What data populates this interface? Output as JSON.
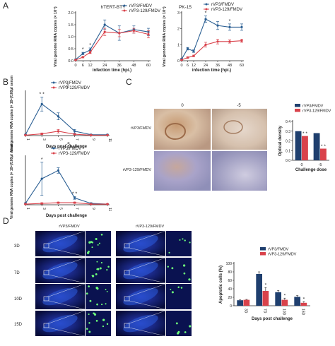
{
  "panels": {
    "A": "A",
    "B": "B",
    "C": "C",
    "D": "D"
  },
  "colors": {
    "blue": "#2b5f93",
    "red": "#d9424b",
    "darkblue": "#1f3f6e"
  },
  "chart_data": [
    {
      "id": "A1",
      "type": "line",
      "title": "hTERT-BTY",
      "xlabel": "infection time (hpi.)",
      "ylabel": "Viral genome RNA copies (× 10⁴)",
      "x": [
        0,
        6,
        12,
        24,
        36,
        48,
        60
      ],
      "xticks": [
        "0",
        "6",
        "12",
        "24",
        "36",
        "48",
        "60"
      ],
      "yticks": [
        "0.0",
        "0.5",
        "1.0",
        "1.5",
        "2.0"
      ],
      "ylim": [
        0,
        2.0
      ],
      "xlim": [
        0,
        60
      ],
      "series": [
        {
          "name": "rVP3/FMDV",
          "values": [
            0.05,
            0.3,
            0.45,
            1.5,
            1.15,
            1.3,
            1.2
          ],
          "err": [
            0.02,
            0.05,
            0.08,
            0.2,
            0.3,
            0.15,
            0.15
          ],
          "color": "#2b5f93"
        },
        {
          "name": "rVP3-129/FMDV",
          "values": [
            0.03,
            0.15,
            0.35,
            1.2,
            1.15,
            1.25,
            1.1
          ],
          "err": [
            0.01,
            0.03,
            0.05,
            0.15,
            0.15,
            0.1,
            0.15
          ],
          "color": "#d9424b"
        }
      ],
      "annotations": [
        {
          "x": 6,
          "text": "*"
        },
        {
          "x": 12,
          "text": "*"
        }
      ]
    },
    {
      "id": "A2",
      "type": "line",
      "title": "PK-15",
      "xlabel": "infection time (hpi.)",
      "ylabel": "Viral genome RNA copies (× 10⁴)",
      "x": [
        0,
        6,
        12,
        24,
        36,
        48,
        60
      ],
      "xticks": [
        "0",
        "6",
        "12",
        "24",
        "36",
        "48",
        "60"
      ],
      "yticks": [
        "0",
        "1",
        "2",
        "3"
      ],
      "ylim": [
        0,
        3
      ],
      "xlim": [
        0,
        60
      ],
      "series": [
        {
          "name": "rVP3/FMDV",
          "values": [
            0.1,
            0.75,
            0.6,
            2.6,
            2.2,
            2.1,
            2.1
          ],
          "err": [
            0.05,
            0.08,
            0.08,
            0.2,
            0.25,
            0.2,
            0.2
          ],
          "color": "#2b5f93"
        },
        {
          "name": "rVP3-129/FMDV",
          "values": [
            0.05,
            0.2,
            0.3,
            1.0,
            1.2,
            1.2,
            1.25
          ],
          "err": [
            0.02,
            0.05,
            0.05,
            0.15,
            0.15,
            0.1,
            0.1
          ],
          "color": "#d9424b"
        }
      ],
      "annotations": [
        {
          "x": 24,
          "text": "*"
        },
        {
          "x": 48,
          "text": "*"
        }
      ]
    },
    {
      "id": "B1",
      "type": "line",
      "title": "0",
      "xlabel": "Days post challenge",
      "ylabel": "Viral genome RNA copies (× 10⁴)/100μl serum",
      "x": [
        1,
        3,
        5,
        7,
        9,
        11
      ],
      "xticks": [
        "1",
        "3",
        "5",
        "7",
        "9",
        "11"
      ],
      "ylim": [
        0,
        5
      ],
      "series": [
        {
          "name": "rVP3/FMDV",
          "values": [
            0.1,
            3.6,
            2.2,
            0.5,
            0.1,
            0.1
          ],
          "err": [
            0.05,
            0.8,
            0.4,
            0.2,
            0.05,
            0.05
          ],
          "color": "#2b5f93"
        },
        {
          "name": "rVP3-129/FMDV",
          "values": [
            0.05,
            0.2,
            0.5,
            0.15,
            0.05,
            0.05
          ],
          "err": [
            0.02,
            0.1,
            0.2,
            0.05,
            0.02,
            0.02
          ],
          "color": "#d9424b"
        }
      ],
      "annotations": [
        {
          "x": 3,
          "text": "* *"
        }
      ]
    },
    {
      "id": "B2",
      "type": "line",
      "title": "-5",
      "xlabel": "Days post challenge",
      "ylabel": "Viral genome RNA copies (× 10⁴)/100μl serum",
      "x": [
        1,
        3,
        5,
        7,
        9,
        11
      ],
      "xticks": [
        "1",
        "3",
        "5",
        "7",
        "9",
        "11"
      ],
      "ylim": [
        0,
        3.5
      ],
      "series": [
        {
          "name": "rVP3/FMDV",
          "values": [
            0.1,
            1.9,
            2.5,
            0.5,
            0.1,
            0.05
          ],
          "err": [
            0.05,
            1.2,
            0.2,
            0.1,
            0.05,
            0.02
          ],
          "color": "#2b5f93"
        },
        {
          "name": "rVP3-129/FMDV",
          "values": [
            0.05,
            0.1,
            0.15,
            0.15,
            0.05,
            0.05
          ],
          "err": [
            0.02,
            0.05,
            0.05,
            0.05,
            0.02,
            0.02
          ],
          "color": "#d9424b"
        }
      ],
      "annotations": [
        {
          "x": 3,
          "text": "*"
        },
        {
          "x": 7,
          "text": "* *"
        }
      ]
    },
    {
      "id": "C",
      "type": "bar",
      "xlabel": "Challenge dose",
      "ylabel": "Optical density",
      "categories": [
        "0",
        "-5"
      ],
      "yticks": [
        "0.0",
        "0.1",
        "0.2",
        "0.3",
        "0.4"
      ],
      "ylim": [
        0,
        0.4
      ],
      "series": [
        {
          "name": "rVP3/FMDV",
          "values": [
            0.3,
            0.28
          ],
          "color": "#1f3f6e"
        },
        {
          "name": "rVP3-129/FMDV",
          "values": [
            0.25,
            0.12
          ],
          "color": "#d9424b"
        }
      ],
      "annotations": [
        {
          "category": "0",
          "text": "* *"
        },
        {
          "category": "-5",
          "text": "* *"
        }
      ]
    },
    {
      "id": "D",
      "type": "bar",
      "xlabel": "Days post challenge",
      "ylabel": "Apoptotic cells (%)",
      "categories": [
        "3D",
        "7D",
        "10D",
        "15D"
      ],
      "yticks": [
        "0",
        "20",
        "40",
        "60",
        "80",
        "100"
      ],
      "ylim": [
        0,
        100
      ],
      "series": [
        {
          "name": "rVP3/FMDV",
          "values": [
            13,
            75,
            32,
            21
          ],
          "err": [
            1,
            5,
            4,
            3
          ],
          "color": "#1f3f6e"
        },
        {
          "name": "rVP3-129/FMDV",
          "values": [
            14,
            35,
            14,
            7
          ],
          "err": [
            1,
            8,
            4,
            3
          ],
          "color": "#d9424b"
        }
      ],
      "annotations": [
        {
          "category": "7D",
          "text": "*"
        },
        {
          "category": "10D",
          "text": "*"
        },
        {
          "category": "15D",
          "text": "*"
        }
      ]
    }
  ],
  "histology": {
    "C": {
      "columns": [
        "0",
        "-5"
      ],
      "rows": [
        "rVP3/FMDV",
        "rVP3-129/FMDV"
      ]
    },
    "D": {
      "columns": [
        "rVP3/FMDV",
        "rVP3-129/FMDV"
      ],
      "rows": [
        "3D",
        "7D",
        "10D",
        "15D"
      ]
    }
  }
}
